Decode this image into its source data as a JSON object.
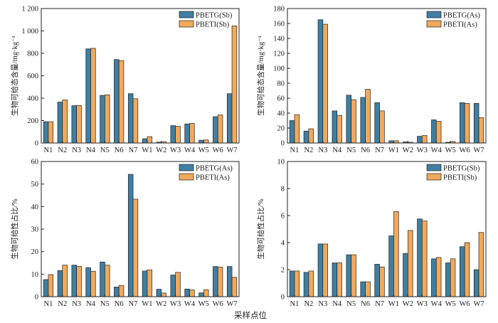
{
  "chart_data": [
    {
      "type": "bar",
      "ylabel": "生物可给态含量/mg·kg⁻¹",
      "ylim": [
        0,
        1200
      ],
      "yticks": [
        0,
        200,
        400,
        600,
        800,
        1000,
        1200
      ],
      "ytick_labels": [
        "0",
        "200",
        "400",
        "600",
        "800",
        "1 000",
        "1 200"
      ],
      "categories": [
        "N1",
        "N2",
        "N3",
        "N4",
        "N5",
        "N6",
        "N7",
        "W1",
        "W2",
        "W3",
        "W4",
        "W5",
        "W6",
        "W7"
      ],
      "legend_position": "top-right",
      "series": [
        {
          "name": "PBETG(Sb)",
          "values": [
            190,
            365,
            333,
            840,
            425,
            745,
            440,
            38,
            8,
            155,
            170,
            25,
            235,
            440
          ]
        },
        {
          "name": "PBETI(Sb)",
          "values": [
            190,
            385,
            335,
            845,
            430,
            735,
            395,
            57,
            12,
            150,
            175,
            27,
            250,
            1045
          ]
        }
      ]
    },
    {
      "type": "bar",
      "ylabel": "生物可给态含量/mg·kg⁻¹",
      "ylim": [
        0,
        180
      ],
      "yticks": [
        0,
        20,
        40,
        60,
        80,
        100,
        120,
        140,
        160,
        180
      ],
      "ytick_labels": [
        "0",
        "20",
        "40",
        "60",
        "80",
        "100",
        "120",
        "140",
        "160",
        "180"
      ],
      "categories": [
        "N1",
        "N2",
        "N3",
        "N4",
        "N5",
        "N6",
        "N7",
        "W1",
        "W2",
        "W3",
        "W4",
        "W5",
        "W6",
        "W7"
      ],
      "legend_position": "top-right",
      "series": [
        {
          "name": "PBETG(As)",
          "values": [
            30,
            16,
            165,
            43,
            64,
            61,
            54,
            3,
            1.5,
            9,
            31,
            1,
            54,
            53
          ]
        },
        {
          "name": "PBETI(As)",
          "values": [
            38,
            19,
            159,
            37,
            58,
            72,
            43,
            3,
            1,
            10,
            29,
            2,
            53,
            34
          ]
        }
      ]
    },
    {
      "type": "bar",
      "ylabel": "生物可给性占比/%",
      "xlabel": "",
      "ylim": [
        0,
        60
      ],
      "yticks": [
        0,
        10,
        20,
        30,
        40,
        50,
        60
      ],
      "ytick_labels": [
        "0",
        "10",
        "20",
        "30",
        "40",
        "50",
        "60"
      ],
      "categories": [
        "N1",
        "N2",
        "N3",
        "N4",
        "N5",
        "N6",
        "N7",
        "W1",
        "W2",
        "W3",
        "W4",
        "W5",
        "W6",
        "W7"
      ],
      "legend_position": "top-right",
      "series": [
        {
          "name": "PBETG(As)",
          "values": [
            7.6,
            11.6,
            14.0,
            12.9,
            15.4,
            4.3,
            54.3,
            11.4,
            3.3,
            9.6,
            3.4,
            1.7,
            13.4,
            13.4
          ]
        },
        {
          "name": "PBETI(As)",
          "values": [
            9.8,
            14.0,
            13.5,
            11.3,
            14.0,
            5.0,
            43.3,
            11.9,
            1.6,
            10.8,
            3.0,
            3.1,
            13.1,
            8.6
          ]
        }
      ]
    },
    {
      "type": "bar",
      "ylabel": "生物可给性占比/%",
      "ylim": [
        0,
        10
      ],
      "yticks": [
        0,
        2,
        4,
        6,
        8,
        10
      ],
      "ytick_labels": [
        "0",
        "2",
        "4",
        "6",
        "8",
        "10"
      ],
      "categories": [
        "N1",
        "N2",
        "N3",
        "N4",
        "N5",
        "N6",
        "N7",
        "W1",
        "W2",
        "W3",
        "W4",
        "W5",
        "W6",
        "W7"
      ],
      "legend_position": "top-right",
      "series": [
        {
          "name": "PBETG(Sb)",
          "values": [
            1.9,
            1.8,
            3.9,
            2.5,
            3.1,
            1.1,
            2.4,
            4.5,
            3.2,
            5.75,
            2.8,
            2.5,
            3.7,
            2.0
          ]
        },
        {
          "name": "PBETI(Sb)",
          "values": [
            1.9,
            1.9,
            3.9,
            2.5,
            3.1,
            1.1,
            2.2,
            6.3,
            4.9,
            5.6,
            2.9,
            2.8,
            4.0,
            4.75
          ]
        }
      ]
    }
  ],
  "figure": {
    "xlabel": "采样点位"
  },
  "colors": {
    "series_a": "#3e7fa3",
    "series_b": "#f2a95b",
    "stroke": "#222222"
  }
}
